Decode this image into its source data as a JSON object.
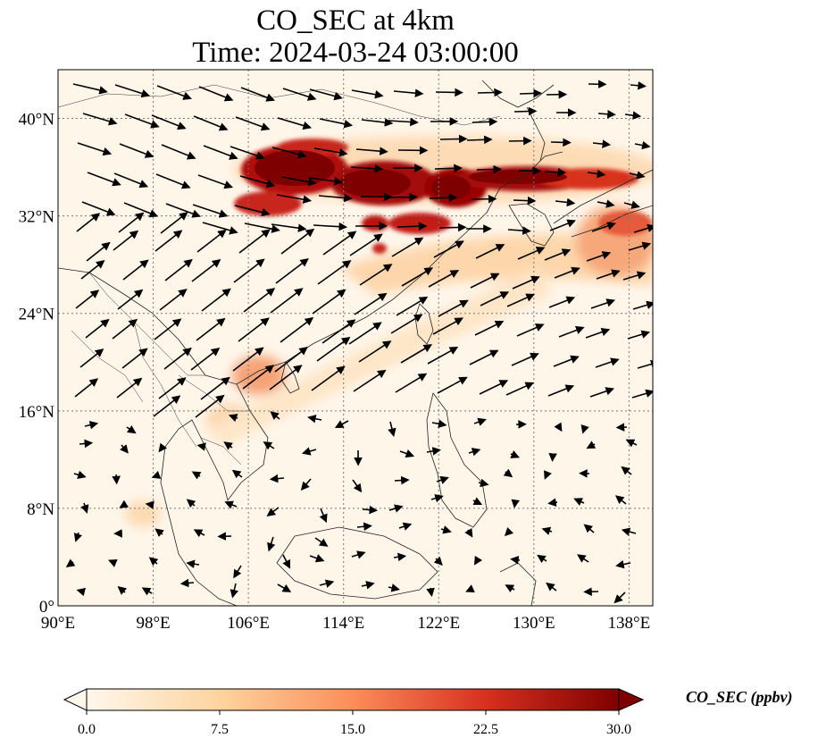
{
  "title": {
    "line1": "CO_SEC at 4km",
    "line2": "Time: 2024-03-24 03:00:00"
  },
  "map": {
    "lon_range": [
      90,
      140
    ],
    "lat_range": [
      0,
      44
    ],
    "lat_ticks": [
      {
        "value": 40,
        "label": "40°N"
      },
      {
        "value": 32,
        "label": "32°N"
      },
      {
        "value": 24,
        "label": "24°N"
      },
      {
        "value": 16,
        "label": "16°N"
      },
      {
        "value": 8,
        "label": "8°N"
      },
      {
        "value": 0,
        "label": "0°"
      }
    ],
    "lon_ticks": [
      {
        "value": 90,
        "label": "90°E"
      },
      {
        "value": 98,
        "label": "98°E"
      },
      {
        "value": 106,
        "label": "106°E"
      },
      {
        "value": 114,
        "label": "114°E"
      },
      {
        "value": 122,
        "label": "122°E"
      },
      {
        "value": 130,
        "label": "130°E"
      },
      {
        "value": 138,
        "label": "138°E"
      }
    ],
    "gridlines": true,
    "colormap": "OrRd",
    "colors": {
      "low": "#fff7ec",
      "mid": "#fc8d59",
      "high": "#7f0000",
      "grid": "#777777"
    }
  },
  "colorbar": {
    "label": "CO_SEC (ppbv)",
    "range": [
      0,
      30
    ],
    "ticks": [
      "0.0",
      "7.5",
      "15.0",
      "22.5",
      "30.0"
    ],
    "extend": "both"
  }
}
